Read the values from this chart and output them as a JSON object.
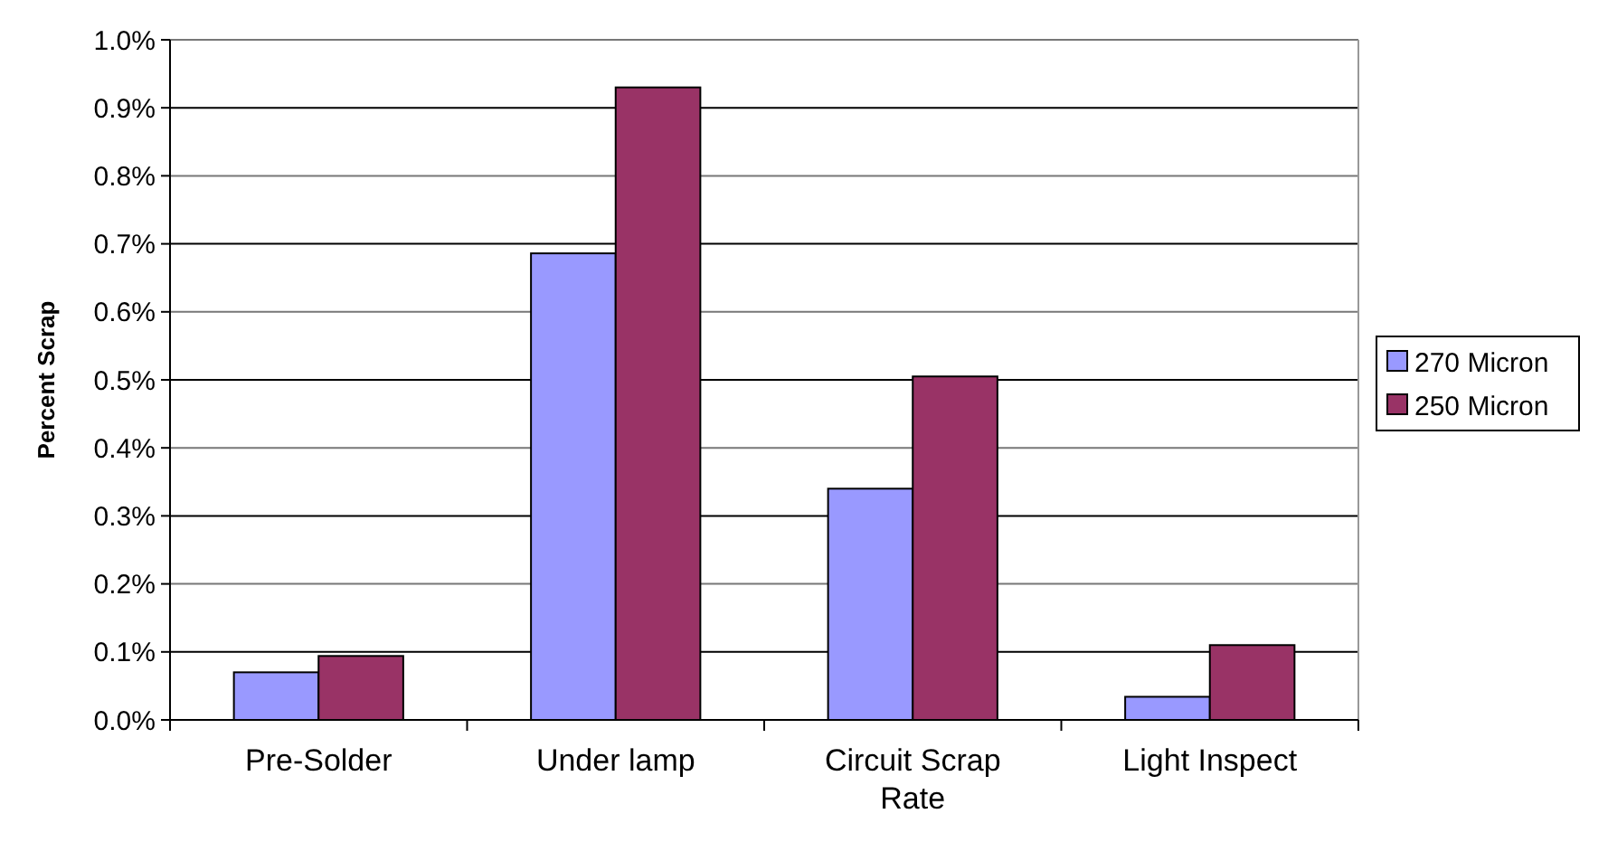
{
  "chart_data": {
    "type": "bar",
    "ylabel": "Percent Scrap",
    "categories": [
      "Pre-Solder",
      "Under lamp",
      "Circuit Scrap Rate",
      "Light Inspect"
    ],
    "series": [
      {
        "name": "270 Micron",
        "color": "#9999ff",
        "values": [
          0.07,
          0.686,
          0.34,
          0.034
        ]
      },
      {
        "name": "250 Micron",
        "color": "#993366",
        "values": [
          0.094,
          0.93,
          0.505,
          0.11
        ]
      }
    ],
    "ylim": [
      0,
      1
    ],
    "yticks": [
      {
        "value": 0,
        "label": "0.0%"
      },
      {
        "value": 0.1,
        "label": "0.1%"
      },
      {
        "value": 0.2,
        "label": "0.2%"
      },
      {
        "value": 0.3,
        "label": "0.3%"
      },
      {
        "value": 0.4,
        "label": "0.4%"
      },
      {
        "value": 0.5,
        "label": "0.5%"
      },
      {
        "value": 0.6,
        "label": "0.6%"
      },
      {
        "value": 0.7,
        "label": "0.7%"
      },
      {
        "value": 0.8,
        "label": "0.8%"
      },
      {
        "value": 0.9,
        "label": "0.9%"
      },
      {
        "value": 1,
        "label": "1.0%"
      }
    ],
    "grid": "y",
    "legend": "right"
  }
}
